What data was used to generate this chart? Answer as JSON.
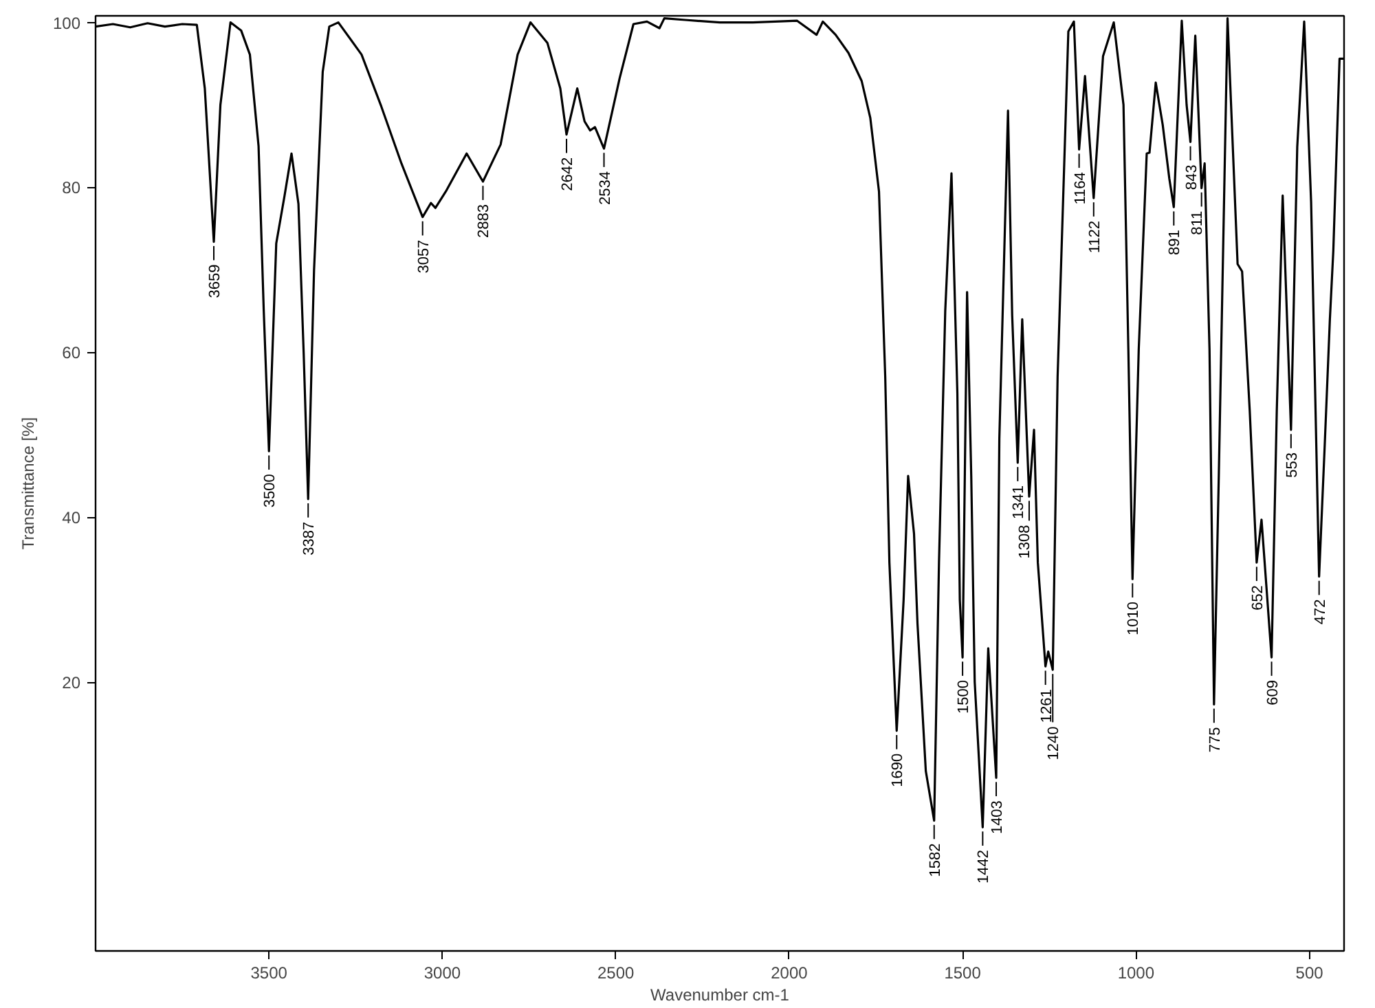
{
  "chart_data": {
    "type": "line",
    "xlabel": "Wavenumber cm-1",
    "ylabel": "Transmittance [%]",
    "xlim": [
      4000,
      400
    ],
    "xticks": [
      3500,
      3000,
      2500,
      2000,
      1500,
      1000,
      500
    ],
    "ylim": [
      -12.6,
      100.8
    ],
    "yticks": [
      20,
      40,
      60,
      80,
      100
    ],
    "grid": false,
    "marker": "none",
    "line_style": "solid",
    "series": [
      {
        "color": "#000000",
        "x": [
          4000,
          3950,
          3900,
          3850,
          3800,
          3750,
          3708,
          3685,
          3659,
          3640,
          3611,
          3580,
          3555,
          3530,
          3515,
          3500,
          3485,
          3479,
          3455,
          3435,
          3415,
          3400,
          3387,
          3370,
          3345,
          3326,
          3300,
          3233,
          3176,
          3118,
          3057,
          3033,
          3020,
          2990,
          2930,
          2883,
          2832,
          2783,
          2746,
          2697,
          2660,
          2642,
          2611,
          2590,
          2574,
          2560,
          2534,
          2489,
          2449,
          2410,
          2374,
          2360,
          2300,
          2200,
          2105,
          1977,
          1921,
          1903,
          1866,
          1829,
          1791,
          1766,
          1741,
          1723,
          1711,
          1690,
          1670,
          1657,
          1640,
          1630,
          1606,
          1582,
          1568,
          1550,
          1532,
          1515,
          1508,
          1500,
          1487,
          1475,
          1465,
          1442,
          1426,
          1403,
          1394,
          1369,
          1357,
          1341,
          1328,
          1308,
          1294,
          1283,
          1261,
          1253,
          1240,
          1226,
          1195,
          1179,
          1164,
          1147,
          1122,
          1095,
          1064,
          1036,
          1022,
          1010,
          992,
          969,
          961,
          943,
          923,
          904,
          891,
          868,
          854,
          843,
          829,
          811,
          802,
          788,
          775,
          761,
          736,
          707,
          694,
          672,
          652,
          638,
          609,
          594,
          577,
          553,
          535,
          515,
          495,
          472,
          456,
          441,
          431,
          413,
          400
        ],
        "values": [
          99.5,
          99.8,
          99.4,
          99.9,
          99.5,
          99.8,
          99.7,
          92,
          73.4,
          90,
          100,
          99,
          96.1,
          85,
          65,
          48.0,
          66,
          73.2,
          79,
          84.1,
          78,
          60,
          42.2,
          70,
          94,
          99.5,
          100,
          96.1,
          89.8,
          82.9,
          76.4,
          78.1,
          77.5,
          79.5,
          84.1,
          80.7,
          85.2,
          96.1,
          100,
          97.5,
          92,
          86.4,
          92.0,
          88,
          86.9,
          87.3,
          84.7,
          93.2,
          99.8,
          100.1,
          99.3,
          100.5,
          100.3,
          100.0,
          100.0,
          100.2,
          98.5,
          100.1,
          98.5,
          96.3,
          92.9,
          88.4,
          79.5,
          57.0,
          34.5,
          14.1,
          30,
          45.0,
          38,
          27.1,
          9.2,
          3.2,
          34.5,
          65,
          81.7,
          55,
          30,
          23.0,
          67.3,
          45,
          20,
          2.4,
          24.1,
          8.4,
          49.5,
          89.3,
          64.5,
          46.6,
          64.0,
          42.5,
          50.6,
          34.5,
          21.9,
          23.7,
          21.5,
          57,
          98.9,
          100.1,
          84.6,
          93.5,
          78.7,
          95.9,
          100,
          90,
          60.4,
          32.5,
          60.4,
          84.1,
          84.2,
          92.7,
          87.6,
          81.1,
          77.6,
          100.2,
          90,
          85.5,
          98.4,
          79.9,
          82.9,
          60.4,
          17.3,
          45.4,
          100.5,
          70.7,
          69.8,
          52.9,
          34.5,
          39.7,
          23.0,
          52.9,
          79.0,
          50.6,
          84.9,
          100.1,
          78.2,
          32.8,
          48.5,
          63.9,
          72.3,
          95.6,
          95.6
        ]
      }
    ],
    "annotations": [
      {
        "text": "3659",
        "x": 3659,
        "y": 73.4
      },
      {
        "text": "3500",
        "x": 3500,
        "y": 48.0
      },
      {
        "text": "3387",
        "x": 3387,
        "y": 42.2
      },
      {
        "text": "3057",
        "x": 3057,
        "y": 76.4
      },
      {
        "text": "2883",
        "x": 2883,
        "y": 80.7
      },
      {
        "text": "2642",
        "x": 2642,
        "y": 86.4
      },
      {
        "text": "2534",
        "x": 2534,
        "y": 84.7
      },
      {
        "text": "1690",
        "x": 1690,
        "y": 14.1
      },
      {
        "text": "1582",
        "x": 1582,
        "y": 3.2
      },
      {
        "text": "1500",
        "x": 1500,
        "y": 23.0
      },
      {
        "text": "1442",
        "x": 1442,
        "y": 2.4
      },
      {
        "text": "1403",
        "x": 1403,
        "y": 8.4
      },
      {
        "text": "1341",
        "x": 1341,
        "y": 46.6
      },
      {
        "text": "1308",
        "x": 1308,
        "y": 42.5
      },
      {
        "text": "1261",
        "x": 1261,
        "y": 21.9
      },
      {
        "text": "1240",
        "x": 1240,
        "y": 21.5
      },
      {
        "text": "1164",
        "x": 1164,
        "y": 84.6
      },
      {
        "text": "1122",
        "x": 1122,
        "y": 78.7
      },
      {
        "text": "1010",
        "x": 1010,
        "y": 32.5
      },
      {
        "text": "891",
        "x": 891,
        "y": 77.6
      },
      {
        "text": "843",
        "x": 843,
        "y": 85.5
      },
      {
        "text": "811",
        "x": 811,
        "y": 79.9
      },
      {
        "text": "775",
        "x": 775,
        "y": 17.3
      },
      {
        "text": "652",
        "x": 652,
        "y": 34.5
      },
      {
        "text": "609",
        "x": 609,
        "y": 23.0
      },
      {
        "text": "553",
        "x": 553,
        "y": 50.6
      },
      {
        "text": "472",
        "x": 472,
        "y": 32.8
      }
    ]
  }
}
